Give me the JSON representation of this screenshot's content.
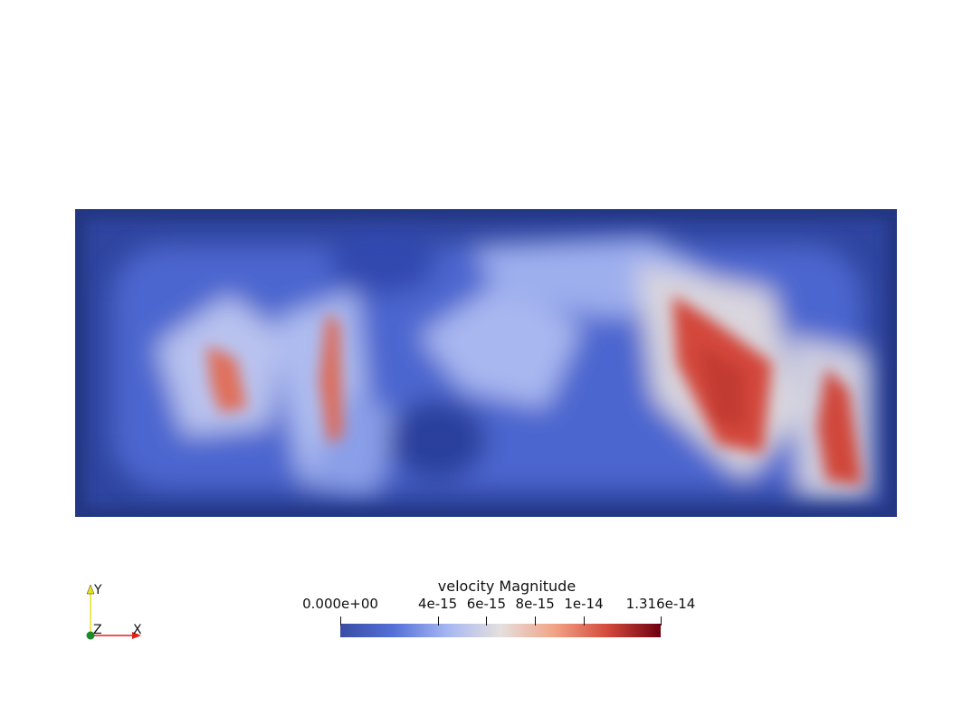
{
  "app": {
    "view": "render-view"
  },
  "field": {
    "variable": "velocity",
    "component": "Magnitude",
    "colormap": "Cool to Warm",
    "colors": [
      "#3b4cc0",
      "#dddddd",
      "#b40426"
    ]
  },
  "colorbar": {
    "title": "velocity Magnitude",
    "min_label": "0.000e+00",
    "max_label": "1.316e-14",
    "min_value": 0,
    "max_value": 1.316e-14,
    "ticks": [
      {
        "label": "4e-15",
        "value": 4e-15
      },
      {
        "label": "6e-15",
        "value": 6e-15
      },
      {
        "label": "8e-15",
        "value": 8e-15
      },
      {
        "label": "1e-14",
        "value": 1e-14
      }
    ],
    "gradient": [
      "#3a4ca4",
      "#5470d8",
      "#a6b6f2",
      "#e4e0de",
      "#f2a487",
      "#d44a3c",
      "#6e0010"
    ]
  },
  "orientation_axes": {
    "x_label": "X",
    "y_label": "Y",
    "z_label": "Z",
    "x_color": "#e0201a",
    "y_color": "#e6e31a",
    "z_color": "#1a8a2a"
  }
}
